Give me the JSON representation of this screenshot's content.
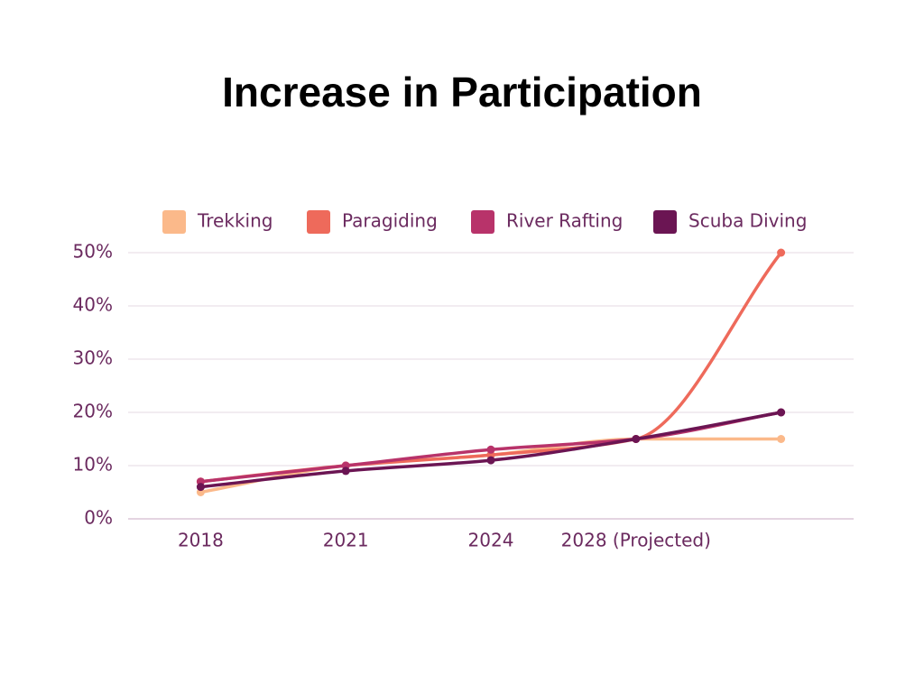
{
  "chart_data": {
    "type": "line",
    "title": "Increase in Participation",
    "categories": [
      "2018",
      "2021",
      "2024",
      "2028 (Projected)",
      null
    ],
    "series": [
      {
        "name": "Trekking",
        "color": "#fbb98a",
        "values": [
          5,
          10,
          12,
          15,
          15
        ]
      },
      {
        "name": "Paragiding",
        "color": "#ee6a5b",
        "values": [
          7,
          10,
          12,
          15,
          50
        ]
      },
      {
        "name": "River Rafting",
        "color": "#b8336a",
        "values": [
          7,
          10,
          13,
          15,
          20
        ]
      },
      {
        "name": "Scuba Diving",
        "color": "#6b1553",
        "values": [
          6,
          9,
          11,
          15,
          20
        ]
      }
    ],
    "ylim": [
      0,
      50
    ],
    "yticks": [
      {
        "value": 0,
        "label": "0%"
      },
      {
        "value": 10,
        "label": "10%"
      },
      {
        "value": 20,
        "label": "20%"
      },
      {
        "value": 30,
        "label": "30%"
      },
      {
        "value": 40,
        "label": "40%"
      },
      {
        "value": 50,
        "label": "50%"
      }
    ],
    "grid": true,
    "legend": "top"
  }
}
